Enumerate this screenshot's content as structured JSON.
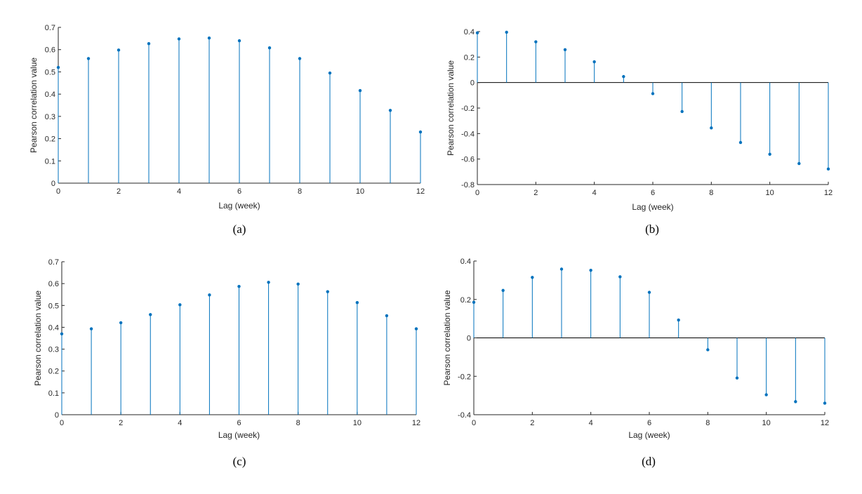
{
  "colors": {
    "stem": "#0072BD",
    "axis": "#262626",
    "background": "#ffffff"
  },
  "chart_data": [
    {
      "type": "stem",
      "caption": "(a)",
      "xlabel": "Lag (week)",
      "ylabel": "Pearson correlation value",
      "xlim": [
        0,
        12
      ],
      "ylim": [
        0,
        0.7
      ],
      "xticks": [
        0,
        2,
        4,
        6,
        8,
        10,
        12
      ],
      "yticks": [
        0,
        0.1,
        0.2,
        0.3,
        0.4,
        0.5,
        0.6,
        0.7
      ],
      "grid": false,
      "x": [
        0,
        1,
        2,
        3,
        4,
        5,
        6,
        7,
        8,
        9,
        10,
        11,
        12
      ],
      "values": [
        0.52,
        0.56,
        0.598,
        0.627,
        0.648,
        0.652,
        0.64,
        0.608,
        0.56,
        0.495,
        0.416,
        0.327,
        0.23
      ]
    },
    {
      "type": "stem",
      "caption": "(b)",
      "xlabel": "Lag (week)",
      "ylabel": "Pearson correlation value",
      "xlim": [
        0,
        12
      ],
      "ylim": [
        -0.8,
        0.4
      ],
      "xticks": [
        0,
        2,
        4,
        6,
        8,
        10,
        12
      ],
      "yticks": [
        -0.8,
        -0.6,
        -0.4,
        -0.2,
        0,
        0.2,
        0.4
      ],
      "grid": false,
      "x": [
        0,
        1,
        2,
        3,
        4,
        5,
        6,
        7,
        8,
        9,
        10,
        11,
        12
      ],
      "values": [
        0.39,
        0.395,
        0.32,
        0.258,
        0.163,
        0.047,
        -0.087,
        -0.227,
        -0.356,
        -0.47,
        -0.562,
        -0.635,
        -0.678
      ]
    },
    {
      "type": "stem",
      "caption": "(c)",
      "xlabel": "Lag (week)",
      "ylabel": "Pearson correlation value",
      "xlim": [
        0,
        12
      ],
      "ylim": [
        0,
        0.7
      ],
      "xticks": [
        0,
        2,
        4,
        6,
        8,
        10,
        12
      ],
      "yticks": [
        0,
        0.1,
        0.2,
        0.3,
        0.4,
        0.5,
        0.6,
        0.7
      ],
      "grid": false,
      "x": [
        0,
        1,
        2,
        3,
        4,
        5,
        6,
        7,
        8,
        9,
        10,
        11,
        12
      ],
      "values": [
        0.37,
        0.393,
        0.421,
        0.458,
        0.503,
        0.548,
        0.587,
        0.606,
        0.598,
        0.563,
        0.513,
        0.453,
        0.393
      ]
    },
    {
      "type": "stem",
      "caption": "(d)",
      "xlabel": "Lag (week)",
      "ylabel": "Pearson correlation value",
      "xlim": [
        0,
        12
      ],
      "ylim": [
        -0.4,
        0.4
      ],
      "xticks": [
        0,
        2,
        4,
        6,
        8,
        10,
        12
      ],
      "yticks": [
        -0.4,
        -0.2,
        0,
        0.2,
        0.4
      ],
      "grid": false,
      "x": [
        0,
        1,
        2,
        3,
        4,
        5,
        6,
        7,
        8,
        9,
        10,
        11,
        12
      ],
      "values": [
        0.185,
        0.247,
        0.315,
        0.358,
        0.352,
        0.318,
        0.237,
        0.093,
        -0.062,
        -0.209,
        -0.296,
        -0.332,
        -0.34
      ]
    }
  ]
}
